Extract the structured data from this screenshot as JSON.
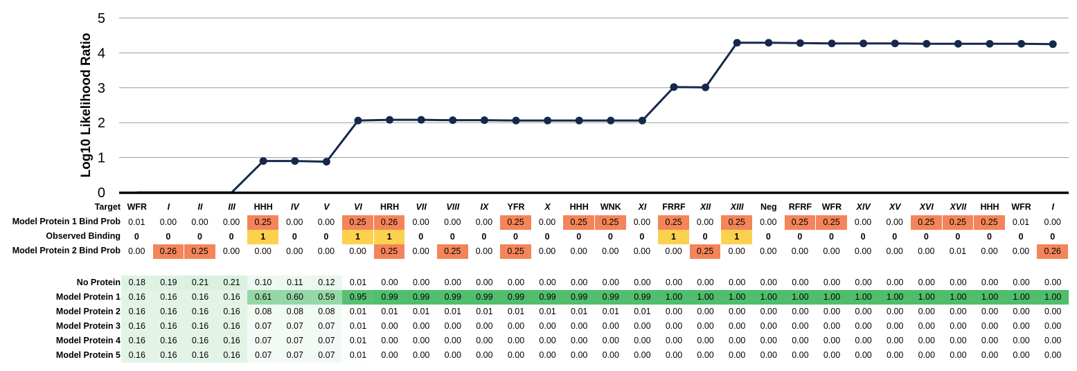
{
  "chart_data": {
    "type": "line",
    "title": "",
    "xlabel": "",
    "ylabel": "Log10 Likelihood Ratio",
    "ylim": [
      0,
      5
    ],
    "yticks": [
      "0",
      "1",
      "2",
      "3",
      "4",
      "5"
    ],
    "grid": true,
    "series_color": "#14284b",
    "categories": [
      "WFR",
      "I",
      "II",
      "III",
      "HHH",
      "IV",
      "V",
      "VI",
      "HRH",
      "VII",
      "VIII",
      "IX",
      "YFR",
      "X",
      "HHH",
      "WNK",
      "XI",
      "FRRF",
      "XII",
      "XIII",
      "Neg",
      "RFRF",
      "WFR",
      "XIV",
      "XV",
      "XVI",
      "XVII",
      "HHH",
      "WFR",
      "I"
    ],
    "italic_categories": [
      false,
      true,
      true,
      true,
      false,
      true,
      true,
      true,
      false,
      true,
      true,
      true,
      false,
      true,
      false,
      false,
      true,
      false,
      true,
      true,
      false,
      false,
      false,
      true,
      true,
      true,
      true,
      false,
      false,
      true
    ],
    "series": [
      {
        "values": [
          0,
          0,
          0,
          0,
          0.9,
          0.9,
          0.88,
          2.06,
          2.08,
          2.08,
          2.07,
          2.07,
          2.06,
          2.06,
          2.06,
          2.06,
          2.06,
          3.02,
          3.01,
          4.29,
          4.29,
          4.28,
          4.27,
          4.27,
          4.27,
          4.26,
          4.26,
          4.26,
          4.26,
          4.25
        ]
      }
    ]
  },
  "table": {
    "target_label": "Target",
    "rows": [
      {
        "label": "Model Protein 1 Bind Prob",
        "bold": false,
        "values": [
          "0.01",
          "0.00",
          "0.00",
          "0.00",
          "0.25",
          "0.00",
          "0.00",
          "0.25",
          "0.26",
          "0.00",
          "0.00",
          "0.00",
          "0.25",
          "0.00",
          "0.25",
          "0.25",
          "0.00",
          "0.25",
          "0.00",
          "0.25",
          "0.00",
          "0.25",
          "0.25",
          "0.00",
          "0.00",
          "0.25",
          "0.25",
          "0.25",
          "0.01",
          "0.00"
        ]
      },
      {
        "label": "Observed Binding",
        "bold": true,
        "values": [
          "0",
          "0",
          "0",
          "0",
          "1",
          "0",
          "0",
          "1",
          "1",
          "0",
          "0",
          "0",
          "0",
          "0",
          "0",
          "0",
          "0",
          "1",
          "0",
          "1",
          "0",
          "0",
          "0",
          "0",
          "0",
          "0",
          "0",
          "0",
          "0",
          "0"
        ]
      },
      {
        "label": "Model Protein 2 Bind Prob",
        "bold": false,
        "values": [
          "0.00",
          "0.26",
          "0.25",
          "0.00",
          "0.00",
          "0.00",
          "0.00",
          "0.00",
          "0.25",
          "0.00",
          "0.25",
          "0.00",
          "0.25",
          "0.00",
          "0.00",
          "0.00",
          "0.00",
          "0.00",
          "0.25",
          "0.00",
          "0.00",
          "0.00",
          "0.00",
          "0.00",
          "0.00",
          "0.00",
          "0.01",
          "0.00",
          "0.00",
          "0.26"
        ]
      }
    ],
    "posterior_rows": [
      {
        "label": "No Protein",
        "values": [
          "0.18",
          "0.19",
          "0.21",
          "0.21",
          "0.10",
          "0.11",
          "0.12",
          "0.01",
          "0.00",
          "0.00",
          "0.00",
          "0.00",
          "0.00",
          "0.00",
          "0.00",
          "0.00",
          "0.00",
          "0.00",
          "0.00",
          "0.00",
          "0.00",
          "0.00",
          "0.00",
          "0.00",
          "0.00",
          "0.00",
          "0.00",
          "0.00",
          "0.00",
          "0.00"
        ]
      },
      {
        "label": "Model Protein 1",
        "values": [
          "0.16",
          "0.16",
          "0.16",
          "0.16",
          "0.61",
          "0.60",
          "0.59",
          "0.95",
          "0.99",
          "0.99",
          "0.99",
          "0.99",
          "0.99",
          "0.99",
          "0.99",
          "0.99",
          "0.99",
          "1.00",
          "1.00",
          "1.00",
          "1.00",
          "1.00",
          "1.00",
          "1.00",
          "1.00",
          "1.00",
          "1.00",
          "1.00",
          "1.00",
          "1.00"
        ]
      },
      {
        "label": "Model Protein 2",
        "values": [
          "0.16",
          "0.16",
          "0.16",
          "0.16",
          "0.08",
          "0.08",
          "0.08",
          "0.01",
          "0.01",
          "0.01",
          "0.01",
          "0.01",
          "0.01",
          "0.01",
          "0.01",
          "0.01",
          "0.01",
          "0.00",
          "0.00",
          "0.00",
          "0.00",
          "0.00",
          "0.00",
          "0.00",
          "0.00",
          "0.00",
          "0.00",
          "0.00",
          "0.00",
          "0.00"
        ]
      },
      {
        "label": "Model Protein 3",
        "values": [
          "0.16",
          "0.16",
          "0.16",
          "0.16",
          "0.07",
          "0.07",
          "0.07",
          "0.01",
          "0.00",
          "0.00",
          "0.00",
          "0.00",
          "0.00",
          "0.00",
          "0.00",
          "0.00",
          "0.00",
          "0.00",
          "0.00",
          "0.00",
          "0.00",
          "0.00",
          "0.00",
          "0.00",
          "0.00",
          "0.00",
          "0.00",
          "0.00",
          "0.00",
          "0.00"
        ]
      },
      {
        "label": "Model Protein 4",
        "values": [
          "0.16",
          "0.16",
          "0.16",
          "0.16",
          "0.07",
          "0.07",
          "0.07",
          "0.01",
          "0.00",
          "0.00",
          "0.00",
          "0.00",
          "0.00",
          "0.00",
          "0.00",
          "0.00",
          "0.00",
          "0.00",
          "0.00",
          "0.00",
          "0.00",
          "0.00",
          "0.00",
          "0.00",
          "0.00",
          "0.00",
          "0.00",
          "0.00",
          "0.00",
          "0.00"
        ]
      },
      {
        "label": "Model Protein 5",
        "values": [
          "0.16",
          "0.16",
          "0.16",
          "0.16",
          "0.07",
          "0.07",
          "0.07",
          "0.01",
          "0.00",
          "0.00",
          "0.00",
          "0.00",
          "0.00",
          "0.00",
          "0.00",
          "0.00",
          "0.00",
          "0.00",
          "0.00",
          "0.00",
          "0.00",
          "0.00",
          "0.00",
          "0.00",
          "0.00",
          "0.00",
          "0.00",
          "0.00",
          "0.00",
          "0.00"
        ]
      }
    ]
  },
  "colors": {
    "line": "#14284b",
    "grid": "#9a9a9a",
    "axis": "#000000",
    "bind_prob_highlight": "#f4845a",
    "observed_binding_highlight": "#fcd150",
    "heat_low": "#ffffff",
    "heat_high": "#4fbd6c"
  }
}
